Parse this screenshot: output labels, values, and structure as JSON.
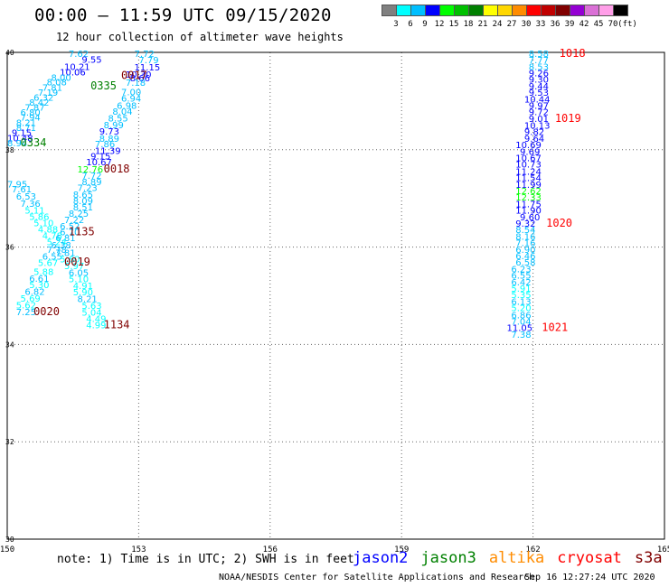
{
  "header": {
    "title": "00:00 – 11:59 UTC 09/15/2020",
    "subtitle": "12 hour collection of altimeter wave heights"
  },
  "color_scale": {
    "labels": [
      "3",
      "6",
      "9",
      "12",
      "15",
      "18",
      "21",
      "24",
      "27",
      "30",
      "33",
      "36",
      "39",
      "42",
      "45",
      "70",
      "(ft)"
    ],
    "colors": [
      "#808080",
      "#00ffff",
      "#00bfff",
      "#0000ff",
      "#00ff00",
      "#00c000",
      "#008000",
      "#ffff00",
      "#ffd700",
      "#ff8c00",
      "#ff0000",
      "#c00000",
      "#800000",
      "#9400d3",
      "#da70d6",
      "#ff9ee8",
      "#000000"
    ]
  },
  "footer": {
    "note": "note: 1) Time is in UTC; 2) SWH is in feet",
    "satellites": [
      {
        "name": "jason2",
        "color": "#0000ff"
      },
      {
        "name": "jason3",
        "color": "#008000"
      },
      {
        "name": "altika",
        "color": "#ff8c00"
      },
      {
        "name": "cryosat",
        "color": "#ff0000"
      },
      {
        "name": "s3a",
        "color": "#800000"
      }
    ],
    "credit": "NOAA/NESDIS Center for Satellite Applications and Research",
    "timestamp": "Sep 16 12:27:24 UTC 2020"
  },
  "chart_data": {
    "type": "scatter",
    "title": "00:00 – 11:59 UTC 09/15/2020",
    "subtitle": "12 hour collection of altimeter wave heights",
    "xlim": [
      150,
      165
    ],
    "ylim": [
      30,
      40
    ],
    "x_ticks": [
      "150",
      "153",
      "156",
      "159",
      "162",
      "165"
    ],
    "y_ticks": [
      "30",
      "32",
      "34",
      "36",
      "38",
      "40"
    ],
    "grid": true,
    "points": [
      {
        "x": 151.4,
        "y": 39.91,
        "v": "7.62",
        "c": "#00bfff"
      },
      {
        "x": 152.9,
        "y": 39.91,
        "v": "7.72",
        "c": "#00bfff"
      },
      {
        "x": 151.7,
        "y": 39.79,
        "v": "9.55",
        "c": "#0000ff"
      },
      {
        "x": 153.0,
        "y": 39.78,
        "v": "7.79",
        "c": "#00bfff"
      },
      {
        "x": 151.3,
        "y": 39.64,
        "v": "10.21",
        "c": "#0000ff"
      },
      {
        "x": 152.9,
        "y": 39.63,
        "v": "11.15",
        "c": "#0000ff"
      },
      {
        "x": 151.2,
        "y": 39.53,
        "v": "10.06",
        "c": "#0000ff"
      },
      {
        "x": 152.7,
        "y": 39.48,
        "v": "10.30",
        "c": "#0000ff"
      },
      {
        "x": 151.0,
        "y": 39.42,
        "v": "8.00",
        "c": "#00bfff"
      },
      {
        "x": 152.8,
        "y": 39.41,
        "v": "8.66",
        "c": "#0000ff"
      },
      {
        "x": 150.9,
        "y": 39.32,
        "v": "8.08",
        "c": "#00bfff"
      },
      {
        "x": 152.7,
        "y": 39.31,
        "v": "7.18",
        "c": "#00bfff"
      },
      {
        "x": 150.8,
        "y": 39.21,
        "v": "7.81",
        "c": "#00bfff"
      },
      {
        "x": 152.6,
        "y": 39.12,
        "v": "7.00",
        "c": "#00bfff"
      },
      {
        "x": 150.7,
        "y": 39.11,
        "v": "7.19",
        "c": "#00bfff"
      },
      {
        "x": 150.6,
        "y": 39.01,
        "v": "6.32",
        "c": "#00bfff"
      },
      {
        "x": 152.6,
        "y": 38.99,
        "v": "6.94",
        "c": "#00bfff"
      },
      {
        "x": 150.5,
        "y": 38.91,
        "v": "8.42",
        "c": "#00bfff"
      },
      {
        "x": 152.5,
        "y": 38.84,
        "v": "6.98",
        "c": "#00bfff"
      },
      {
        "x": 150.4,
        "y": 38.8,
        "v": "7.87",
        "c": "#00bfff"
      },
      {
        "x": 152.4,
        "y": 38.72,
        "v": "8.04",
        "c": "#00bfff"
      },
      {
        "x": 150.3,
        "y": 38.7,
        "v": "6.80",
        "c": "#00bfff"
      },
      {
        "x": 150.3,
        "y": 38.6,
        "v": "7.94",
        "c": "#00bfff"
      },
      {
        "x": 152.3,
        "y": 38.58,
        "v": "8.55",
        "c": "#00bfff"
      },
      {
        "x": 150.2,
        "y": 38.49,
        "v": "8.21",
        "c": "#00bfff"
      },
      {
        "x": 152.2,
        "y": 38.44,
        "v": "8.99",
        "c": "#00bfff"
      },
      {
        "x": 150.2,
        "y": 38.39,
        "v": "8.71",
        "c": "#00bfff"
      },
      {
        "x": 152.1,
        "y": 38.31,
        "v": "9.73",
        "c": "#0000ff"
      },
      {
        "x": 150.1,
        "y": 38.28,
        "v": "9.15",
        "c": "#0000ff"
      },
      {
        "x": 152.1,
        "y": 38.16,
        "v": "8.89",
        "c": "#00bfff"
      },
      {
        "x": 150.0,
        "y": 38.17,
        "v": "10.48",
        "c": "#0000ff"
      },
      {
        "x": 150.0,
        "y": 38.07,
        "v": "8.94",
        "c": "#00bfff"
      },
      {
        "x": 152.0,
        "y": 38.05,
        "v": "7.86",
        "c": "#00bfff"
      },
      {
        "x": 152.0,
        "y": 37.91,
        "v": "11.39",
        "c": "#0000ff"
      },
      {
        "x": 151.9,
        "y": 37.8,
        "v": "9.15",
        "c": "#0000ff"
      },
      {
        "x": 151.8,
        "y": 37.68,
        "v": "10.67",
        "c": "#0000ff"
      },
      {
        "x": 151.6,
        "y": 37.53,
        "v": "12.76",
        "c": "#00ff00"
      },
      {
        "x": 151.7,
        "y": 37.4,
        "v": "7.72",
        "c": "#00bfff"
      },
      {
        "x": 151.7,
        "y": 37.27,
        "v": "8.89",
        "c": "#00bfff"
      },
      {
        "x": 150.0,
        "y": 37.23,
        "v": "7.95",
        "c": "#00bfff"
      },
      {
        "x": 151.6,
        "y": 37.15,
        "v": "7.23",
        "c": "#00bfff"
      },
      {
        "x": 150.1,
        "y": 37.12,
        "v": "7.61",
        "c": "#00bfff"
      },
      {
        "x": 151.5,
        "y": 37.01,
        "v": "8.65",
        "c": "#00bfff"
      },
      {
        "x": 150.2,
        "y": 36.98,
        "v": "6.53",
        "c": "#00bfff"
      },
      {
        "x": 151.5,
        "y": 36.88,
        "v": "8.09",
        "c": "#00bfff"
      },
      {
        "x": 150.3,
        "y": 36.83,
        "v": "7.36",
        "c": "#00bfff"
      },
      {
        "x": 151.5,
        "y": 36.75,
        "v": "8.51",
        "c": "#00bfff"
      },
      {
        "x": 150.4,
        "y": 36.69,
        "v": "5.11",
        "c": "#00ffff"
      },
      {
        "x": 151.4,
        "y": 36.62,
        "v": "8.25",
        "c": "#00bfff"
      },
      {
        "x": 150.5,
        "y": 36.56,
        "v": "5.86",
        "c": "#00ffff"
      },
      {
        "x": 151.3,
        "y": 36.49,
        "v": "7.22",
        "c": "#00bfff"
      },
      {
        "x": 150.6,
        "y": 36.43,
        "v": "5.10",
        "c": "#00ffff"
      },
      {
        "x": 151.2,
        "y": 36.36,
        "v": "6.52",
        "c": "#00bfff"
      },
      {
        "x": 150.7,
        "y": 36.3,
        "v": "4.88",
        "c": "#00ffff"
      },
      {
        "x": 151.2,
        "y": 36.24,
        "v": "6.70",
        "c": "#00bfff"
      },
      {
        "x": 150.8,
        "y": 36.17,
        "v": "4.78",
        "c": "#00ffff"
      },
      {
        "x": 151.1,
        "y": 36.12,
        "v": "6.81",
        "c": "#00bfff"
      },
      {
        "x": 150.9,
        "y": 36.04,
        "v": "5.24",
        "c": "#00ffff"
      },
      {
        "x": 151.0,
        "y": 35.97,
        "v": "6.38",
        "c": "#00bfff"
      },
      {
        "x": 150.9,
        "y": 35.88,
        "v": "7.78",
        "c": "#00bfff"
      },
      {
        "x": 151.1,
        "y": 35.82,
        "v": "7.81",
        "c": "#00bfff"
      },
      {
        "x": 150.8,
        "y": 35.74,
        "v": "6.55",
        "c": "#00bfff"
      },
      {
        "x": 151.2,
        "y": 35.69,
        "v": "5.60",
        "c": "#00ffff"
      },
      {
        "x": 150.7,
        "y": 35.61,
        "v": "5.67",
        "c": "#00ffff"
      },
      {
        "x": 151.3,
        "y": 35.55,
        "v": "5.97",
        "c": "#00ffff"
      },
      {
        "x": 150.6,
        "y": 35.43,
        "v": "5.88",
        "c": "#00ffff"
      },
      {
        "x": 151.4,
        "y": 35.41,
        "v": "6.05",
        "c": "#00bfff"
      },
      {
        "x": 150.5,
        "y": 35.29,
        "v": "6.61",
        "c": "#00bfff"
      },
      {
        "x": 151.4,
        "y": 35.28,
        "v": "5.10",
        "c": "#00ffff"
      },
      {
        "x": 150.5,
        "y": 35.16,
        "v": "5.30",
        "c": "#00ffff"
      },
      {
        "x": 151.5,
        "y": 35.14,
        "v": "4.91",
        "c": "#00ffff"
      },
      {
        "x": 150.4,
        "y": 35.02,
        "v": "6.82",
        "c": "#00bfff"
      },
      {
        "x": 151.5,
        "y": 35.01,
        "v": "5.90",
        "c": "#00ffff"
      },
      {
        "x": 150.3,
        "y": 34.88,
        "v": "5.69",
        "c": "#00ffff"
      },
      {
        "x": 151.6,
        "y": 34.87,
        "v": "8.21",
        "c": "#00bfff"
      },
      {
        "x": 150.2,
        "y": 34.74,
        "v": "5.62",
        "c": "#00ffff"
      },
      {
        "x": 151.7,
        "y": 34.73,
        "v": "5.63",
        "c": "#00ffff"
      },
      {
        "x": 150.2,
        "y": 34.6,
        "v": "7.25",
        "c": "#00bfff"
      },
      {
        "x": 151.7,
        "y": 34.59,
        "v": "5.04",
        "c": "#00ffff"
      },
      {
        "x": 151.8,
        "y": 34.46,
        "v": "4.49",
        "c": "#00ffff"
      },
      {
        "x": 151.8,
        "y": 34.33,
        "v": "4.99",
        "c": "#00ffff"
      },
      {
        "x": 161.9,
        "y": 39.91,
        "v": "8.58",
        "c": "#00bfff"
      },
      {
        "x": 161.9,
        "y": 39.78,
        "v": "7.77",
        "c": "#00bfff"
      },
      {
        "x": 161.9,
        "y": 39.64,
        "v": "8.53",
        "c": "#00bfff"
      },
      {
        "x": 161.9,
        "y": 39.51,
        "v": "9.26",
        "c": "#0000ff"
      },
      {
        "x": 161.9,
        "y": 39.38,
        "v": "9.30",
        "c": "#0000ff"
      },
      {
        "x": 161.9,
        "y": 39.24,
        "v": "9.44",
        "c": "#0000ff"
      },
      {
        "x": 161.9,
        "y": 39.11,
        "v": "9.53",
        "c": "#0000ff"
      },
      {
        "x": 161.8,
        "y": 38.97,
        "v": "10.44",
        "c": "#0000ff"
      },
      {
        "x": 161.9,
        "y": 38.84,
        "v": "9.97",
        "c": "#0000ff"
      },
      {
        "x": 161.9,
        "y": 38.71,
        "v": "9.72",
        "c": "#0000ff"
      },
      {
        "x": 161.9,
        "y": 38.57,
        "v": "9.01",
        "c": "#0000ff"
      },
      {
        "x": 161.8,
        "y": 38.43,
        "v": "10.13",
        "c": "#0000ff"
      },
      {
        "x": 161.8,
        "y": 38.3,
        "v": "9.82",
        "c": "#0000ff"
      },
      {
        "x": 161.8,
        "y": 38.16,
        "v": "9.64",
        "c": "#0000ff"
      },
      {
        "x": 161.6,
        "y": 38.03,
        "v": "10.69",
        "c": "#0000ff"
      },
      {
        "x": 161.7,
        "y": 37.89,
        "v": "9.69",
        "c": "#0000ff"
      },
      {
        "x": 161.6,
        "y": 37.76,
        "v": "10.67",
        "c": "#0000ff"
      },
      {
        "x": 161.6,
        "y": 37.63,
        "v": "10.73",
        "c": "#0000ff"
      },
      {
        "x": 161.6,
        "y": 37.49,
        "v": "11.24",
        "c": "#0000ff"
      },
      {
        "x": 161.6,
        "y": 37.36,
        "v": "11.54",
        "c": "#0000ff"
      },
      {
        "x": 161.6,
        "y": 37.22,
        "v": "11.99",
        "c": "#0000ff"
      },
      {
        "x": 161.6,
        "y": 37.09,
        "v": "12.62",
        "c": "#00ff00"
      },
      {
        "x": 161.6,
        "y": 36.96,
        "v": "12.33",
        "c": "#00ff00"
      },
      {
        "x": 161.6,
        "y": 36.82,
        "v": "11.75",
        "c": "#0000ff"
      },
      {
        "x": 161.6,
        "y": 36.69,
        "v": "11.90",
        "c": "#0000ff"
      },
      {
        "x": 161.7,
        "y": 36.55,
        "v": "9.60",
        "c": "#0000ff"
      },
      {
        "x": 161.6,
        "y": 36.42,
        "v": "9.32",
        "c": "#0000ff"
      },
      {
        "x": 161.6,
        "y": 36.29,
        "v": "8.54",
        "c": "#00bfff"
      },
      {
        "x": 161.6,
        "y": 36.15,
        "v": "8.16",
        "c": "#00bfff"
      },
      {
        "x": 161.6,
        "y": 36.02,
        "v": "7.16",
        "c": "#00bfff"
      },
      {
        "x": 161.6,
        "y": 35.88,
        "v": "6.90",
        "c": "#00bfff"
      },
      {
        "x": 161.6,
        "y": 35.75,
        "v": "6.46",
        "c": "#00bfff"
      },
      {
        "x": 161.6,
        "y": 35.62,
        "v": "6.58",
        "c": "#00bfff"
      },
      {
        "x": 161.5,
        "y": 35.48,
        "v": "6.23",
        "c": "#00bfff"
      },
      {
        "x": 161.5,
        "y": 35.35,
        "v": "6.55",
        "c": "#00bfff"
      },
      {
        "x": 161.5,
        "y": 35.21,
        "v": "6.42",
        "c": "#00bfff"
      },
      {
        "x": 161.5,
        "y": 35.08,
        "v": "5.91",
        "c": "#00ffff"
      },
      {
        "x": 161.5,
        "y": 34.95,
        "v": "5.35",
        "c": "#00ffff"
      },
      {
        "x": 161.5,
        "y": 34.81,
        "v": "6.13",
        "c": "#00bfff"
      },
      {
        "x": 161.5,
        "y": 34.68,
        "v": "5.20",
        "c": "#00ffff"
      },
      {
        "x": 161.5,
        "y": 34.54,
        "v": "6.86",
        "c": "#00bfff"
      },
      {
        "x": 161.5,
        "y": 34.41,
        "v": "7.04",
        "c": "#00bfff"
      },
      {
        "x": 161.4,
        "y": 34.28,
        "v": "11.05",
        "c": "#0000ff"
      },
      {
        "x": 161.5,
        "y": 34.14,
        "v": "7.38",
        "c": "#00bfff"
      }
    ],
    "time_labels": [
      {
        "x": 152.6,
        "y": 39.45,
        "t": "0017",
        "c": "#800000"
      },
      {
        "x": 151.9,
        "y": 39.24,
        "t": "0335",
        "c": "#008000"
      },
      {
        "x": 150.3,
        "y": 38.07,
        "t": "0334",
        "c": "#008000"
      },
      {
        "x": 152.2,
        "y": 37.53,
        "t": "0018",
        "c": "#800000"
      },
      {
        "x": 151.4,
        "y": 36.24,
        "t": "1135",
        "c": "#800000"
      },
      {
        "x": 151.3,
        "y": 35.62,
        "t": "0019",
        "c": "#800000"
      },
      {
        "x": 150.6,
        "y": 34.6,
        "t": "0020",
        "c": "#800000"
      },
      {
        "x": 152.2,
        "y": 34.33,
        "t": "1134",
        "c": "#800000"
      },
      {
        "x": 162.6,
        "y": 39.91,
        "t": "1018",
        "c": "#ff0000"
      },
      {
        "x": 162.5,
        "y": 38.57,
        "t": "1019",
        "c": "#ff0000"
      },
      {
        "x": 162.3,
        "y": 36.42,
        "t": "1020",
        "c": "#ff0000"
      },
      {
        "x": 162.2,
        "y": 34.28,
        "t": "1021",
        "c": "#ff0000"
      }
    ]
  }
}
